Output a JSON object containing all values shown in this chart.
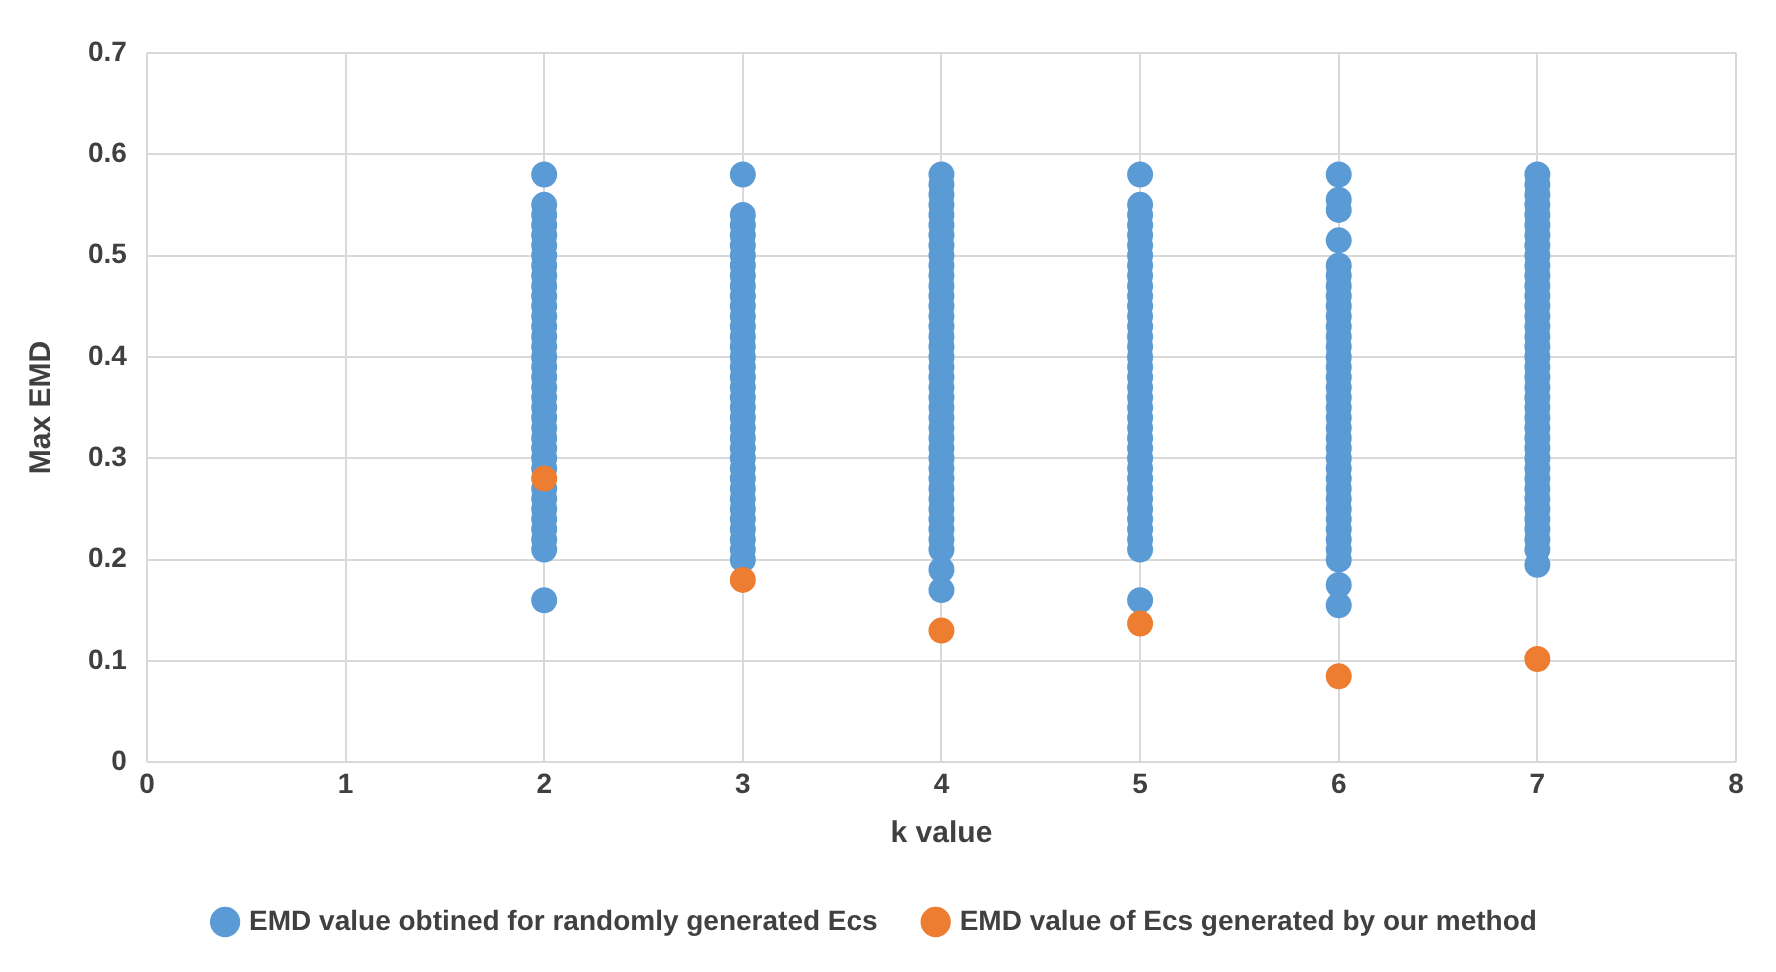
{
  "chart_data": {
    "type": "scatter",
    "xlabel": "k value",
    "ylabel": "Max EMD",
    "xlim": [
      0,
      8
    ],
    "xticks": [
      0,
      1,
      2,
      3,
      4,
      5,
      6,
      7,
      8
    ],
    "ylim": [
      0,
      0.7
    ],
    "yticks": [
      0,
      0.1,
      0.2,
      0.3,
      0.4,
      0.5,
      0.6,
      0.7
    ],
    "grid": true,
    "legend": "bottom",
    "marker": "circle",
    "series": [
      {
        "name": "EMD value obtined for randomly generated Ecs",
        "color": "#5b9bd5",
        "x": [
          2,
          2,
          2,
          2,
          2,
          2,
          2,
          2,
          2,
          2,
          2,
          2,
          2,
          2,
          2,
          2,
          2,
          2,
          2,
          2,
          2,
          2,
          2,
          2,
          2,
          2,
          2,
          2,
          2,
          2,
          2,
          2,
          2,
          2,
          2,
          2,
          3,
          3,
          3,
          3,
          3,
          3,
          3,
          3,
          3,
          3,
          3,
          3,
          3,
          3,
          3,
          3,
          3,
          3,
          3,
          3,
          3,
          3,
          3,
          3,
          3,
          3,
          3,
          3,
          3,
          3,
          3,
          3,
          3,
          3,
          3,
          3,
          4,
          4,
          4,
          4,
          4,
          4,
          4,
          4,
          4,
          4,
          4,
          4,
          4,
          4,
          4,
          4,
          4,
          4,
          4,
          4,
          4,
          4,
          4,
          4,
          4,
          4,
          4,
          4,
          4,
          4,
          4,
          4,
          4,
          4,
          4,
          4,
          4,
          4,
          4,
          4,
          5,
          5,
          5,
          5,
          5,
          5,
          5,
          5,
          5,
          5,
          5,
          5,
          5,
          5,
          5,
          5,
          5,
          5,
          5,
          5,
          5,
          5,
          5,
          5,
          5,
          5,
          5,
          5,
          5,
          5,
          5,
          5,
          5,
          5,
          5,
          5,
          5,
          6,
          6,
          6,
          6,
          6,
          6,
          6,
          6,
          6,
          6,
          6,
          6,
          6,
          6,
          6,
          6,
          6,
          6,
          6,
          6,
          6,
          6,
          6,
          6,
          6,
          6,
          6,
          6,
          6,
          6,
          6,
          6,
          6,
          6,
          6,
          6,
          7,
          7,
          7,
          7,
          7,
          7,
          7,
          7,
          7,
          7,
          7,
          7,
          7,
          7,
          7,
          7,
          7,
          7,
          7,
          7,
          7,
          7,
          7,
          7,
          7,
          7,
          7,
          7,
          7,
          7,
          7,
          7,
          7,
          7,
          7,
          7,
          7,
          7,
          7
        ],
        "values": [
          0.58,
          0.55,
          0.54,
          0.53,
          0.52,
          0.51,
          0.5,
          0.49,
          0.48,
          0.47,
          0.46,
          0.45,
          0.44,
          0.43,
          0.42,
          0.41,
          0.4,
          0.39,
          0.38,
          0.37,
          0.36,
          0.35,
          0.34,
          0.33,
          0.32,
          0.31,
          0.3,
          0.29,
          0.27,
          0.26,
          0.25,
          0.24,
          0.23,
          0.22,
          0.21,
          0.16,
          0.58,
          0.54,
          0.53,
          0.52,
          0.51,
          0.5,
          0.49,
          0.48,
          0.47,
          0.46,
          0.45,
          0.44,
          0.43,
          0.42,
          0.41,
          0.4,
          0.39,
          0.38,
          0.37,
          0.36,
          0.35,
          0.34,
          0.33,
          0.32,
          0.31,
          0.3,
          0.29,
          0.28,
          0.27,
          0.26,
          0.25,
          0.24,
          0.23,
          0.22,
          0.21,
          0.2,
          0.58,
          0.57,
          0.56,
          0.55,
          0.54,
          0.53,
          0.52,
          0.51,
          0.5,
          0.49,
          0.48,
          0.47,
          0.46,
          0.45,
          0.44,
          0.43,
          0.42,
          0.41,
          0.4,
          0.39,
          0.38,
          0.37,
          0.36,
          0.35,
          0.34,
          0.33,
          0.32,
          0.31,
          0.3,
          0.29,
          0.28,
          0.27,
          0.26,
          0.25,
          0.24,
          0.23,
          0.22,
          0.21,
          0.19,
          0.17,
          0.58,
          0.55,
          0.54,
          0.53,
          0.52,
          0.51,
          0.5,
          0.49,
          0.48,
          0.47,
          0.46,
          0.45,
          0.44,
          0.43,
          0.42,
          0.41,
          0.4,
          0.39,
          0.38,
          0.37,
          0.36,
          0.35,
          0.34,
          0.33,
          0.32,
          0.31,
          0.3,
          0.29,
          0.28,
          0.27,
          0.26,
          0.25,
          0.24,
          0.23,
          0.22,
          0.21,
          0.16,
          0.58,
          0.555,
          0.545,
          0.515,
          0.49,
          0.48,
          0.47,
          0.46,
          0.45,
          0.44,
          0.43,
          0.42,
          0.41,
          0.4,
          0.39,
          0.38,
          0.37,
          0.36,
          0.35,
          0.34,
          0.33,
          0.32,
          0.31,
          0.3,
          0.29,
          0.28,
          0.27,
          0.26,
          0.25,
          0.24,
          0.23,
          0.22,
          0.21,
          0.2,
          0.175,
          0.155,
          0.58,
          0.57,
          0.56,
          0.55,
          0.54,
          0.53,
          0.52,
          0.51,
          0.5,
          0.49,
          0.48,
          0.47,
          0.46,
          0.45,
          0.44,
          0.43,
          0.42,
          0.41,
          0.4,
          0.39,
          0.38,
          0.37,
          0.36,
          0.35,
          0.34,
          0.33,
          0.32,
          0.31,
          0.3,
          0.29,
          0.28,
          0.27,
          0.26,
          0.25,
          0.24,
          0.23,
          0.22,
          0.21,
          0.195
        ]
      },
      {
        "name": "EMD value of Ecs generated by our method",
        "color": "#ed7d31",
        "x": [
          2,
          3,
          4,
          5,
          6,
          7
        ],
        "values": [
          0.28,
          0.18,
          0.13,
          0.137,
          0.085,
          0.102
        ]
      }
    ]
  }
}
